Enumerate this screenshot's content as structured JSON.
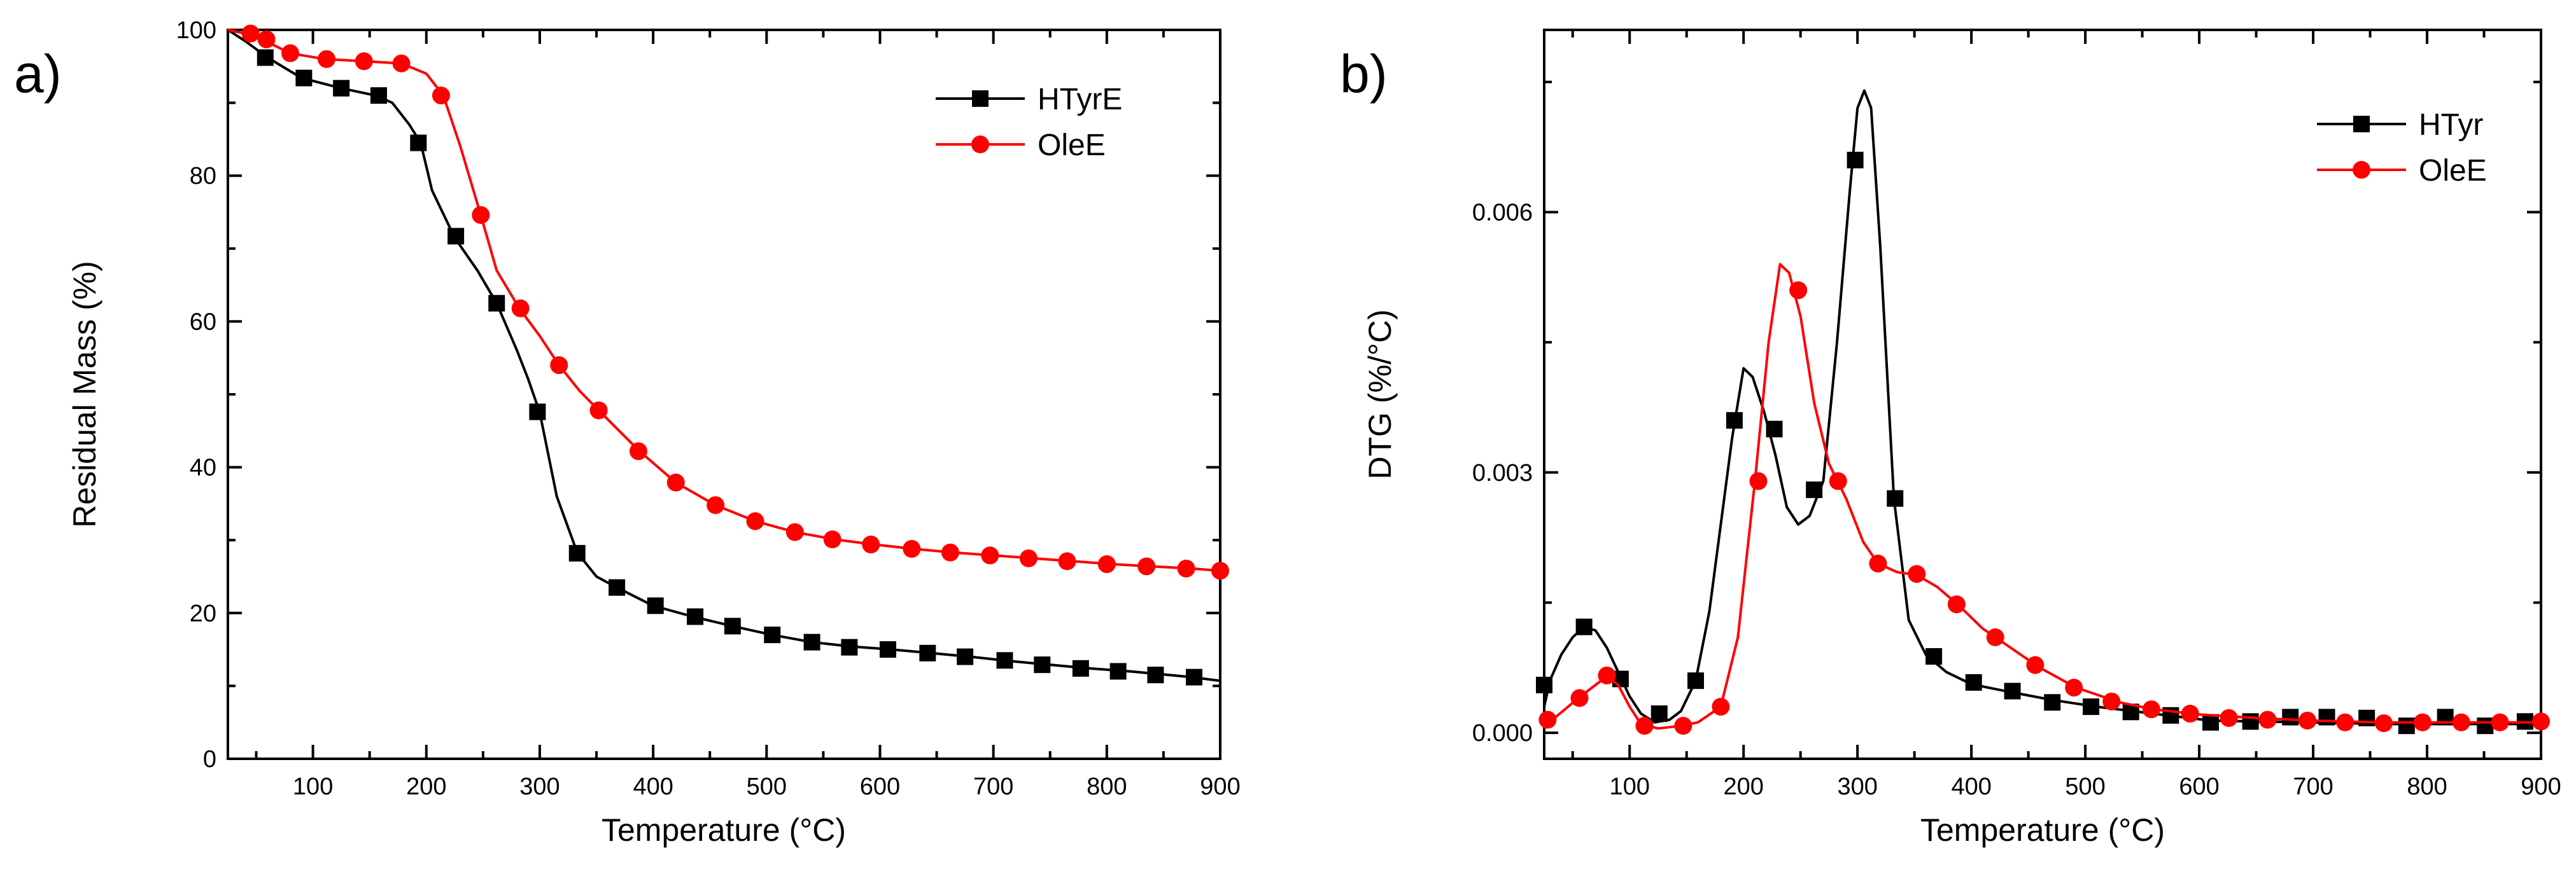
{
  "chart_data": [
    {
      "type": "line",
      "panel_label": "a)",
      "xlabel": "Temperature (°C)",
      "ylabel": "Residual Mass (%)",
      "xlim": [
        25,
        900
      ],
      "ylim": [
        0,
        100
      ],
      "xticks": [
        100,
        200,
        300,
        400,
        500,
        600,
        700,
        800,
        900
      ],
      "yticks": [
        0,
        20,
        40,
        60,
        80,
        100
      ],
      "legend_position": "top-right",
      "series": [
        {
          "name": "HTyrE",
          "color": "#000000",
          "marker": "square",
          "line": [
            [
              25,
              100
            ],
            [
              40,
              98.5
            ],
            [
              60,
              96.2
            ],
            [
              90,
              93.4
            ],
            [
              125,
              92
            ],
            [
              155,
              91
            ],
            [
              170,
              90
            ],
            [
              185,
              87
            ],
            [
              195,
              84.5
            ],
            [
              205,
              78
            ],
            [
              225,
              71.5
            ],
            [
              245,
              67
            ],
            [
              262,
              62.5
            ],
            [
              280,
              56
            ],
            [
              290,
              52
            ],
            [
              300,
              47.5
            ],
            [
              315,
              36
            ],
            [
              333,
              28.3
            ],
            [
              350,
              25
            ],
            [
              368,
              23.5
            ],
            [
              400,
              21
            ],
            [
              435,
              19.5
            ],
            [
              470,
              18.2
            ],
            [
              505,
              17
            ],
            [
              540,
              16
            ],
            [
              575,
              15.4
            ],
            [
              610,
              15
            ],
            [
              645,
              14.5
            ],
            [
              680,
              14
            ],
            [
              715,
              13.4
            ],
            [
              750,
              12.9
            ],
            [
              785,
              12.4
            ],
            [
              820,
              12
            ],
            [
              855,
              11.5
            ],
            [
              875,
              11.2
            ],
            [
              900,
              10.7
            ]
          ],
          "markers": [
            [
              58,
              96.2
            ],
            [
              92,
              93.4
            ],
            [
              125,
              92
            ],
            [
              158,
              91
            ],
            [
              193,
              84.5
            ],
            [
              226,
              71.7
            ],
            [
              262,
              62.5
            ],
            [
              298,
              47.6
            ],
            [
              333,
              28.2
            ],
            [
              368,
              23.5
            ],
            [
              402,
              21
            ],
            [
              437,
              19.5
            ],
            [
              470,
              18.2
            ],
            [
              505,
              17
            ],
            [
              540,
              16
            ],
            [
              573,
              15.3
            ],
            [
              607,
              15
            ],
            [
              642,
              14.5
            ],
            [
              675,
              14
            ],
            [
              710,
              13.5
            ],
            [
              743,
              12.9
            ],
            [
              777,
              12.4
            ],
            [
              810,
              12
            ],
            [
              843,
              11.5
            ],
            [
              877,
              11.2
            ]
          ]
        },
        {
          "name": "OleE",
          "color": "#ff0000",
          "marker": "circle",
          "line": [
            [
              25,
              100
            ],
            [
              40,
              99.5
            ],
            [
              55,
              98.7
            ],
            [
              80,
              96.8
            ],
            [
              110,
              96
            ],
            [
              145,
              95.7
            ],
            [
              178,
              95.4
            ],
            [
              200,
              94
            ],
            [
              215,
              91
            ],
            [
              230,
              84
            ],
            [
              248,
              74.6
            ],
            [
              262,
              67
            ],
            [
              282,
              61.8
            ],
            [
              300,
              58
            ],
            [
              317,
              54
            ],
            [
              335,
              50.5
            ],
            [
              352,
              47.8
            ],
            [
              370,
              45
            ],
            [
              388,
              42.2
            ],
            [
              420,
              37.9
            ],
            [
              455,
              34.8
            ],
            [
              490,
              32.6
            ],
            [
              525,
              31.1
            ],
            [
              560,
              30.1
            ],
            [
              595,
              29.4
            ],
            [
              630,
              28.8
            ],
            [
              665,
              28.3
            ],
            [
              700,
              27.9
            ],
            [
              735,
              27.5
            ],
            [
              770,
              27.1
            ],
            [
              805,
              26.7
            ],
            [
              840,
              26.4
            ],
            [
              875,
              26.1
            ],
            [
              900,
              25.8
            ]
          ],
          "markers": [
            [
              45,
              99.5
            ],
            [
              59,
              98.7
            ],
            [
              80,
              96.8
            ],
            [
              112,
              96
            ],
            [
              145,
              95.7
            ],
            [
              178,
              95.4
            ],
            [
              213,
              91
            ],
            [
              248,
              74.6
            ],
            [
              283,
              61.8
            ],
            [
              317,
              54
            ],
            [
              352,
              47.8
            ],
            [
              387,
              42.2
            ],
            [
              420,
              37.9
            ],
            [
              455,
              34.8
            ],
            [
              490,
              32.6
            ],
            [
              525,
              31.1
            ],
            [
              558,
              30.1
            ],
            [
              592,
              29.4
            ],
            [
              628,
              28.8
            ],
            [
              662,
              28.3
            ],
            [
              697,
              27.9
            ],
            [
              731,
              27.5
            ],
            [
              765,
              27.1
            ],
            [
              800,
              26.7
            ],
            [
              835,
              26.4
            ],
            [
              870,
              26.1
            ],
            [
              900,
              25.8
            ]
          ]
        }
      ]
    },
    {
      "type": "line",
      "panel_label": "b)",
      "xlabel": "Temperature (°C)",
      "ylabel": "DTG (%/°C)",
      "xlim": [
        25,
        900
      ],
      "ylim": [
        -0.0003,
        0.0081
      ],
      "xticks": [
        100,
        200,
        300,
        400,
        500,
        600,
        700,
        800,
        900
      ],
      "yticks": [
        0.0,
        0.003,
        0.006
      ],
      "ytick_labels": [
        "0.000",
        "0.003",
        "0.006"
      ],
      "legend_position": "top-right",
      "series": [
        {
          "name": "HTyr",
          "color": "#000000",
          "marker": "square",
          "line": [
            [
              25,
              0.0003
            ],
            [
              30,
              0.0006
            ],
            [
              40,
              0.0009
            ],
            [
              50,
              0.0011
            ],
            [
              60,
              0.00122
            ],
            [
              70,
              0.00118
            ],
            [
              80,
              0.00098
            ],
            [
              90,
              0.0007
            ],
            [
              100,
              0.00042
            ],
            [
              110,
              0.00022
            ],
            [
              122,
              0.00012
            ],
            [
              135,
              0.00015
            ],
            [
              145,
              0.00025
            ],
            [
              158,
              0.0006
            ],
            [
              170,
              0.0014
            ],
            [
              180,
              0.0024
            ],
            [
              190,
              0.0034
            ],
            [
              200,
              0.0042
            ],
            [
              208,
              0.0041
            ],
            [
              218,
              0.0037
            ],
            [
              228,
              0.0032
            ],
            [
              238,
              0.0026
            ],
            [
              248,
              0.0024
            ],
            [
              258,
              0.0025
            ],
            [
              270,
              0.0029
            ],
            [
              282,
              0.0045
            ],
            [
              293,
              0.0062
            ],
            [
              300,
              0.0072
            ],
            [
              306,
              0.0074
            ],
            [
              312,
              0.0072
            ],
            [
              320,
              0.0056
            ],
            [
              332,
              0.0027
            ],
            [
              345,
              0.0013
            ],
            [
              360,
              0.0009
            ],
            [
              378,
              0.0007
            ],
            [
              400,
              0.00056
            ],
            [
              430,
              0.00048
            ],
            [
              470,
              0.00038
            ],
            [
              510,
              0.0003
            ],
            [
              560,
              0.00022
            ],
            [
              610,
              0.00014
            ],
            [
              650,
              0.00013
            ],
            [
              700,
              0.00012
            ],
            [
              760,
              0.0001
            ],
            [
              820,
              0.0001
            ],
            [
              860,
              0.0001
            ],
            [
              900,
              0.0001
            ]
          ],
          "markers": [
            [
              25,
              0.00055
            ],
            [
              60,
              0.00122
            ],
            [
              92,
              0.00062
            ],
            [
              126,
              0.00022
            ],
            [
              158,
              0.0006
            ],
            [
              192,
              0.0036
            ],
            [
              227,
              0.0035
            ],
            [
              262,
              0.0028
            ],
            [
              298,
              0.0066
            ],
            [
              333,
              0.0027
            ],
            [
              367,
              0.00088
            ],
            [
              402,
              0.00058
            ],
            [
              436,
              0.00048
            ],
            [
              471,
              0.00035
            ],
            [
              505,
              0.0003
            ],
            [
              540,
              0.00024
            ],
            [
              575,
              0.0002
            ],
            [
              610,
              0.00012
            ],
            [
              645,
              0.00013
            ],
            [
              680,
              0.00018
            ],
            [
              712,
              0.00018
            ],
            [
              747,
              0.00017
            ],
            [
              782,
              8e-05
            ],
            [
              816,
              0.00018
            ],
            [
              851,
              8e-05
            ],
            [
              886,
              0.00013
            ]
          ]
        },
        {
          "name": "OleE",
          "color": "#ff0000",
          "marker": "circle",
          "line": [
            [
              25,
              0.00012
            ],
            [
              35,
              0.00018
            ],
            [
              55,
              0.0004
            ],
            [
              70,
              0.00055
            ],
            [
              80,
              0.00065
            ],
            [
              90,
              0.00055
            ],
            [
              100,
              0.0003
            ],
            [
              110,
              0.0001
            ],
            [
              125,
              5e-05
            ],
            [
              145,
              8e-05
            ],
            [
              160,
              0.00012
            ],
            [
              180,
              0.0003
            ],
            [
              195,
              0.0011
            ],
            [
              210,
              0.0029
            ],
            [
              222,
              0.0045
            ],
            [
              232,
              0.0054
            ],
            [
              240,
              0.0053
            ],
            [
              250,
              0.0048
            ],
            [
              262,
              0.0038
            ],
            [
              275,
              0.0031
            ],
            [
              290,
              0.0027
            ],
            [
              305,
              0.0022
            ],
            [
              318,
              0.00195
            ],
            [
              335,
              0.00185
            ],
            [
              352,
              0.00182
            ],
            [
              370,
              0.00168
            ],
            [
              388,
              0.00148
            ],
            [
              410,
              0.0012
            ],
            [
              430,
              0.00102
            ],
            [
              460,
              0.00075
            ],
            [
              492,
              0.00052
            ],
            [
              530,
              0.00035
            ],
            [
              560,
              0.00027
            ],
            [
              600,
              0.00021
            ],
            [
              650,
              0.00017
            ],
            [
              700,
              0.00014
            ],
            [
              760,
              0.00012
            ],
            [
              820,
              0.00012
            ],
            [
              900,
              0.00012
            ]
          ],
          "markers": [
            [
              28,
              0.00015
            ],
            [
              56,
              0.0004
            ],
            [
              80,
              0.00066
            ],
            [
              113,
              8e-05
            ],
            [
              147,
              8e-05
            ],
            [
              180,
              0.0003
            ],
            [
              213,
              0.0029
            ],
            [
              248,
              0.0051
            ],
            [
              283,
              0.0029
            ],
            [
              318,
              0.00195
            ],
            [
              352,
              0.00183
            ],
            [
              387,
              0.00148
            ],
            [
              421,
              0.0011
            ],
            [
              456,
              0.00078
            ],
            [
              490,
              0.00052
            ],
            [
              523,
              0.00036
            ],
            [
              558,
              0.00027
            ],
            [
              592,
              0.00022
            ],
            [
              626,
              0.00017
            ],
            [
              660,
              0.00015
            ],
            [
              695,
              0.00014
            ],
            [
              728,
              0.00012
            ],
            [
              762,
              0.00011
            ],
            [
              796,
              0.00012
            ],
            [
              830,
              0.00012
            ],
            [
              864,
              0.00012
            ],
            [
              900,
              0.00013
            ]
          ]
        }
      ]
    }
  ]
}
